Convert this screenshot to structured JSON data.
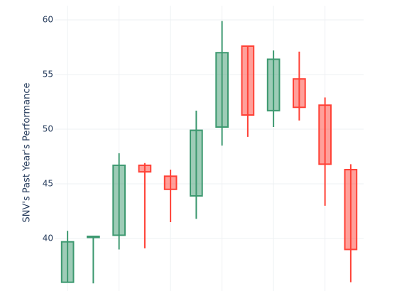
{
  "chart_data": {
    "type": "candlestick",
    "y_label": "SNV's Past Year's Performance",
    "categories": [
      null,
      null,
      null,
      null,
      null,
      null,
      null,
      null,
      null,
      null,
      null,
      null
    ],
    "open": [
      36.0,
      40.1,
      40.3,
      46.7,
      45.7,
      43.9,
      50.2,
      57.6,
      51.7,
      54.6,
      52.2,
      46.3
    ],
    "high": [
      40.7,
      40.2,
      47.8,
      46.9,
      46.3,
      51.7,
      59.9,
      57.6,
      57.2,
      57.1,
      52.9,
      46.8
    ],
    "low": [
      36.0,
      35.9,
      39.0,
      39.1,
      41.5,
      41.8,
      48.5,
      49.3,
      50.2,
      50.8,
      43.0,
      36.0
    ],
    "close": [
      39.7,
      40.2,
      46.7,
      46.1,
      44.5,
      49.9,
      57.0,
      51.3,
      56.4,
      52.0,
      46.8,
      39.0
    ],
    "increasing_color": "#3d9970",
    "decreasing_color": "#ff4136",
    "ylim": [
      35.2,
      61.3
    ],
    "yticks": [
      40,
      45,
      50,
      55,
      60
    ],
    "grid": true
  }
}
